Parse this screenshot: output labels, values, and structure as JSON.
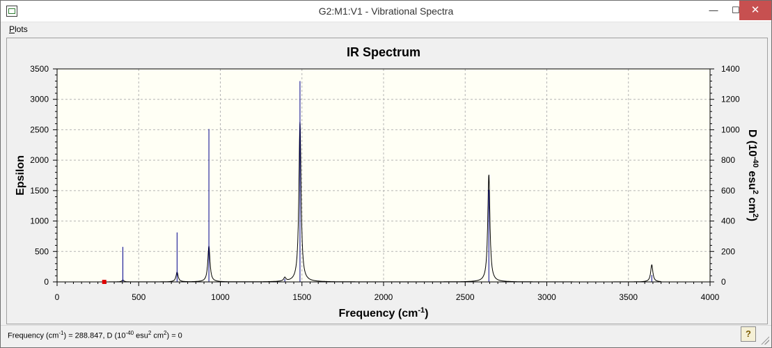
{
  "window": {
    "title": "G2:M1:V1 - Vibrational Spectra",
    "minimize_glyph": "—",
    "maximize_glyph": "☐",
    "close_glyph": "✕"
  },
  "menu": {
    "items": [
      {
        "label": "Plots"
      }
    ]
  },
  "status": {
    "freq_label": "Frequency (cm",
    "freq_exp": "-1",
    "freq_value": ") = 288.847, D (10",
    "d_exp": "-40",
    "d_unit_a": " esu",
    "d_unit_exp": "2",
    "d_unit_b": " cm",
    "d_unit_exp2": "2",
    "d_value": ") = 0",
    "help_glyph": "?"
  },
  "chart_data": {
    "type": "line",
    "title": "IR Spectrum",
    "xlabel": "Frequency (cm-1)",
    "ylabel": "Epsilon",
    "y2label": "D (10-40 esu2 cm2)",
    "xlim": [
      0,
      4000
    ],
    "ylim": [
      0,
      3500
    ],
    "y2lim": [
      0,
      1400
    ],
    "xticks": [
      0,
      500,
      1000,
      1500,
      2000,
      2500,
      3000,
      3500,
      4000
    ],
    "yticks": [
      0,
      500,
      1000,
      1500,
      2000,
      2500,
      3000,
      3500
    ],
    "y2ticks": [
      0,
      200,
      400,
      600,
      800,
      1000,
      1200,
      1400
    ],
    "grid": true,
    "background": "#fffff5",
    "colors": {
      "spectrum": "#000000",
      "sticks": "#00008b",
      "cursor": "#e00000"
    },
    "peaks": [
      {
        "x": 403,
        "epsilon": 30,
        "intensity": 230
      },
      {
        "x": 735,
        "epsilon": 160,
        "intensity": 325
      },
      {
        "x": 930,
        "epsilon": 590,
        "intensity": 1005
      },
      {
        "x": 1395,
        "epsilon": 60,
        "intensity": 20
      },
      {
        "x": 1488,
        "epsilon": 2630,
        "intensity": 1320
      },
      {
        "x": 2645,
        "epsilon": 1760,
        "intensity": 605
      },
      {
        "x": 3643,
        "epsilon": 280,
        "intensity": 45
      }
    ],
    "cursor": {
      "x": 288.847,
      "y": 0
    }
  }
}
